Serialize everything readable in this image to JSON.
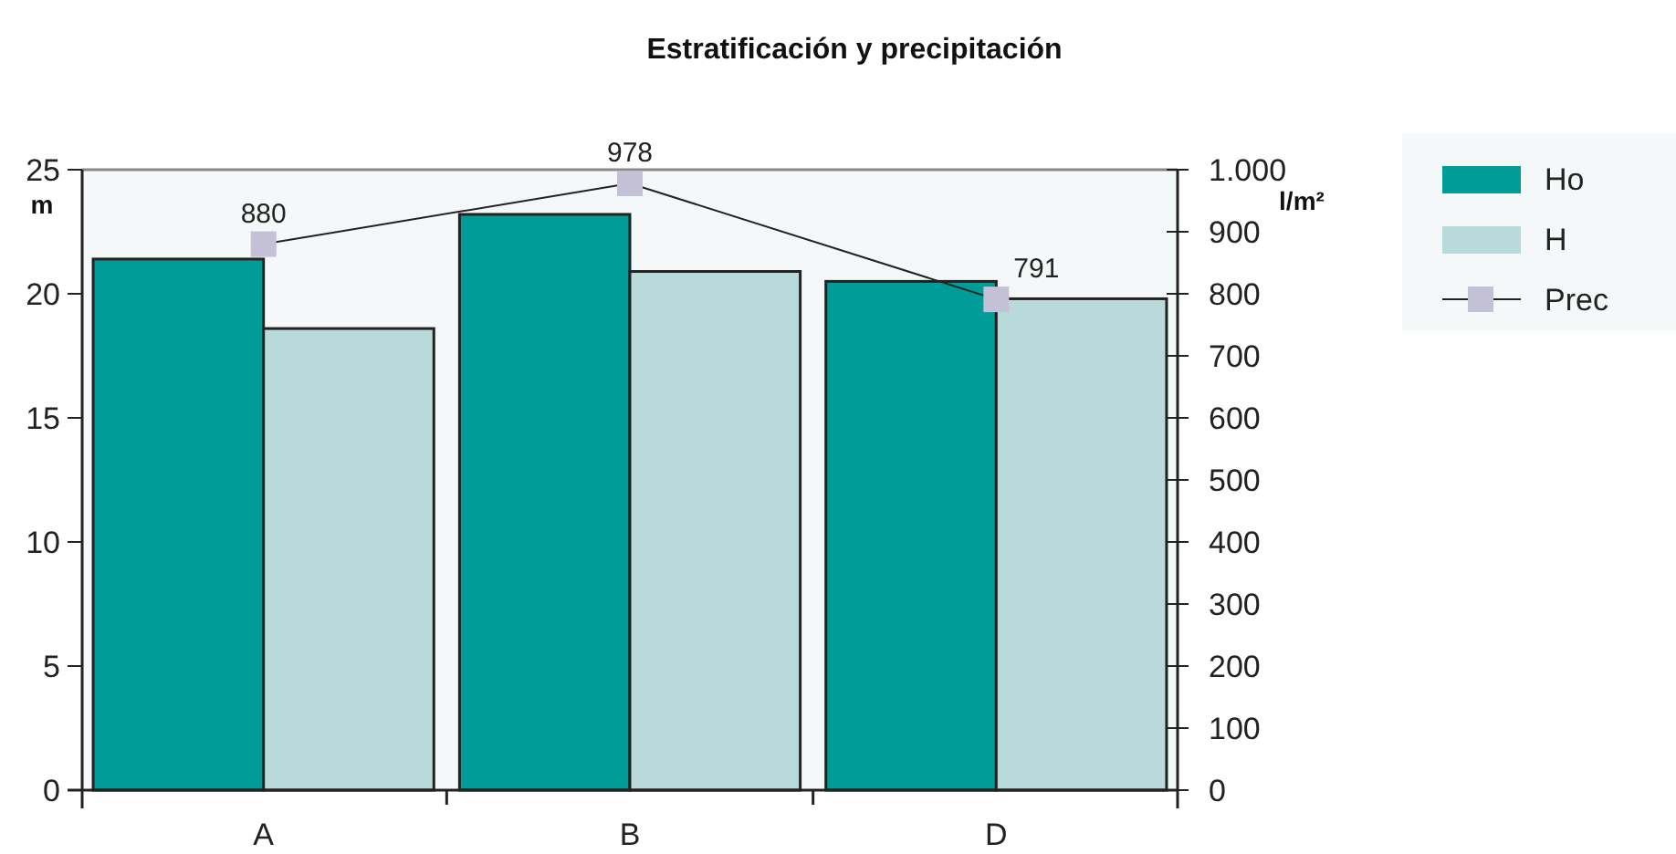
{
  "chart_data": {
    "type": "bar",
    "title": "Estratificación y precipitación",
    "ylabel": "m",
    "y2label": "l/m²",
    "categories": [
      "A",
      "B",
      "D"
    ],
    "series": [
      {
        "name": "Ho",
        "color": "#009c97",
        "values": [
          21.4,
          23.2,
          20.5
        ]
      },
      {
        "name": "H",
        "color": "#b8dada",
        "values": [
          18.6,
          20.9,
          19.8
        ]
      },
      {
        "name": "Prec",
        "type": "line",
        "axis": "y2",
        "color": "#c4c0d6",
        "marker": "square",
        "values": [
          880,
          978,
          791
        ],
        "data_labels": true
      }
    ],
    "ylim": [
      0,
      25
    ],
    "yticks": [
      0,
      5,
      10,
      15,
      20,
      25
    ],
    "y2lim": [
      0,
      1000
    ],
    "y2ticks": [
      0,
      100,
      200,
      300,
      400,
      500,
      600,
      700,
      800,
      900,
      {
        "value": 1000,
        "label": "1.000"
      }
    ],
    "grid": false,
    "legend": "right"
  }
}
